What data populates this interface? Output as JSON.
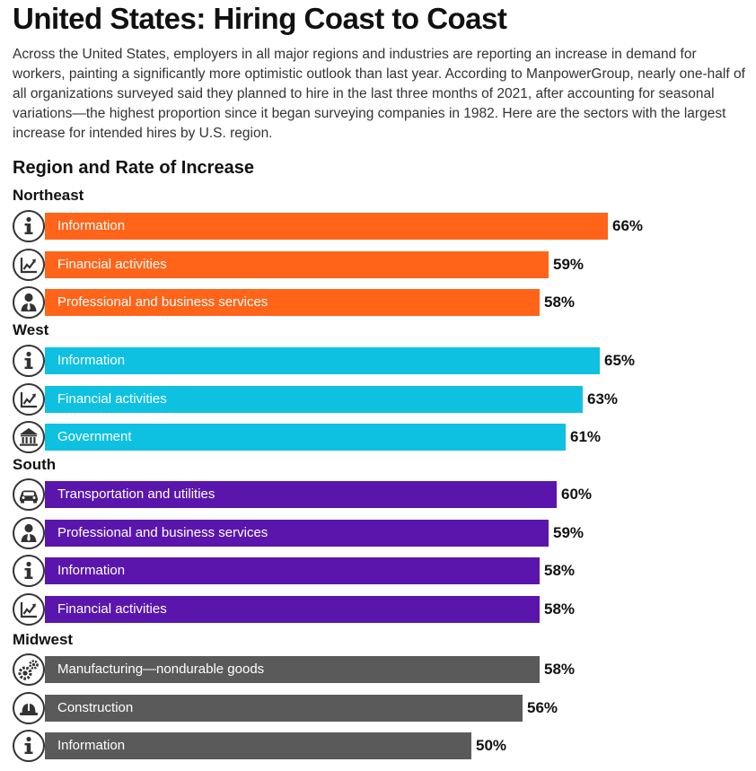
{
  "title": "United States: Hiring Coast to Coast",
  "intro": "Across the United States, employers in all major regions and industries are reporting an increase in demand for workers, painting a significantly more optimistic outlook than last year. According to ManpowerGroup, nearly one-half of all organizations surveyed said they planned to hire in the last three months of 2021, after accounting for seasonal variations—the highest proportion since it began surveying companies in 1982. Here are the sectors with the largest increase for intended hires by U.S. region.",
  "chart_data": {
    "type": "bar",
    "orientation": "horizontal",
    "title": "Region and Rate of Increase",
    "value_unit": "%",
    "groups": [
      {
        "name": "Northeast",
        "color": "#FF6419",
        "items": [
          {
            "label": "Information",
            "value": 66,
            "display": "66%",
            "icon": "information-icon"
          },
          {
            "label": "Financial activities",
            "value": 59,
            "display": "59%",
            "icon": "financial-chart-icon"
          },
          {
            "label": "Professional and business services",
            "value": 58,
            "display": "58%",
            "icon": "person-icon"
          }
        ]
      },
      {
        "name": "West",
        "color": "#0FC1E1",
        "items": [
          {
            "label": "Information",
            "value": 65,
            "display": "65%",
            "icon": "information-icon"
          },
          {
            "label": "Financial activities",
            "value": 63,
            "display": "63%",
            "icon": "financial-chart-icon"
          },
          {
            "label": "Government",
            "value": 61,
            "display": "61%",
            "icon": "government-building-icon"
          }
        ]
      },
      {
        "name": "South",
        "color": "#5A16AC",
        "items": [
          {
            "label": "Transportation and utilities",
            "value": 60,
            "display": "60%",
            "icon": "car-icon"
          },
          {
            "label": "Professional and business services",
            "value": 59,
            "display": "59%",
            "icon": "person-icon"
          },
          {
            "label": "Information",
            "value": 58,
            "display": "58%",
            "icon": "information-icon"
          },
          {
            "label": "Financial activities",
            "value": 58,
            "display": "58%",
            "icon": "financial-chart-icon"
          }
        ]
      },
      {
        "name": "Midwest",
        "color": "#5A5A5A",
        "items": [
          {
            "label": "Manufacturing—nondurable goods",
            "value": 58,
            "display": "58%",
            "icon": "gears-icon"
          },
          {
            "label": "Construction",
            "value": 56,
            "display": "56%",
            "icon": "hard-hat-icon"
          },
          {
            "label": "Information",
            "value": 50,
            "display": "50%",
            "icon": "information-icon"
          }
        ]
      }
    ]
  }
}
